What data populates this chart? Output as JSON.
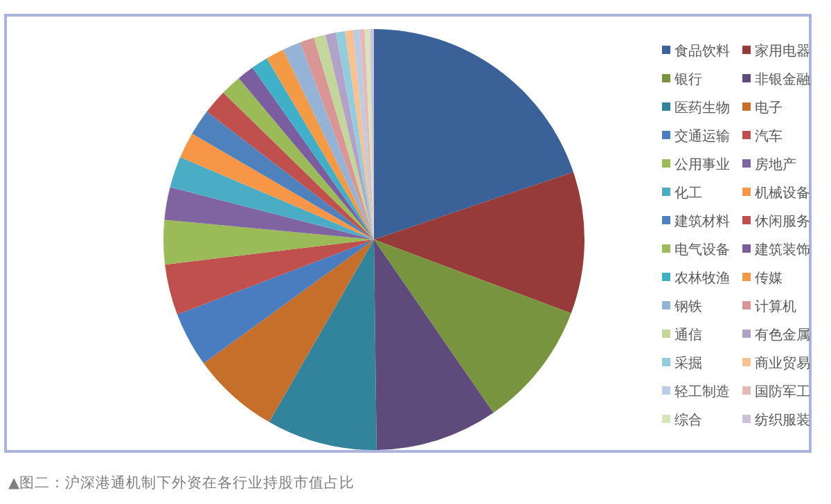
{
  "chart_data": {
    "type": "pie",
    "categories": [
      "食品饮料",
      "家用电器",
      "银行",
      "非银金融",
      "医药生物",
      "电子",
      "交通运输",
      "汽车",
      "公用事业",
      "房地产",
      "化工",
      "机械设备",
      "建筑材料",
      "休闲服务",
      "电气设备",
      "建筑装饰",
      "农林牧渔",
      "传媒",
      "钢铁",
      "计算机",
      "通信",
      "有色金属",
      "采掘",
      "商业贸易",
      "轻工制造",
      "国防军工",
      "综合",
      "纺织服装"
    ],
    "values": [
      19.8,
      10.9,
      9.7,
      9.4,
      8.5,
      6.7,
      4.2,
      3.9,
      3.4,
      2.5,
      2.4,
      2.0,
      2.0,
      1.9,
      1.6,
      1.3,
      1.3,
      1.4,
      1.4,
      1.1,
      0.9,
      0.8,
      0.7,
      0.6,
      0.5,
      0.4,
      0.4,
      0.3
    ],
    "colors": [
      "#3b6298",
      "#963b39",
      "#78943e",
      "#5f4a7c",
      "#31849b",
      "#c66f2a",
      "#4a7cc0",
      "#c0504d",
      "#9bbb59",
      "#8064a2",
      "#4bacc6",
      "#f79646",
      "#4f81bd",
      "#c0504d",
      "#9bbb59",
      "#7a5ea0",
      "#3fb0c8",
      "#f49a44",
      "#95b3d7",
      "#d99694",
      "#c3d69b",
      "#b3a2c7",
      "#93cddd",
      "#fac090",
      "#b9cde5",
      "#e6b9b8",
      "#d7e4bd",
      "#ccc1da"
    ],
    "legend": "right",
    "annotations": [
      "▲图二：沪深港通机制下外资在各行业持股市值占比"
    ]
  }
}
